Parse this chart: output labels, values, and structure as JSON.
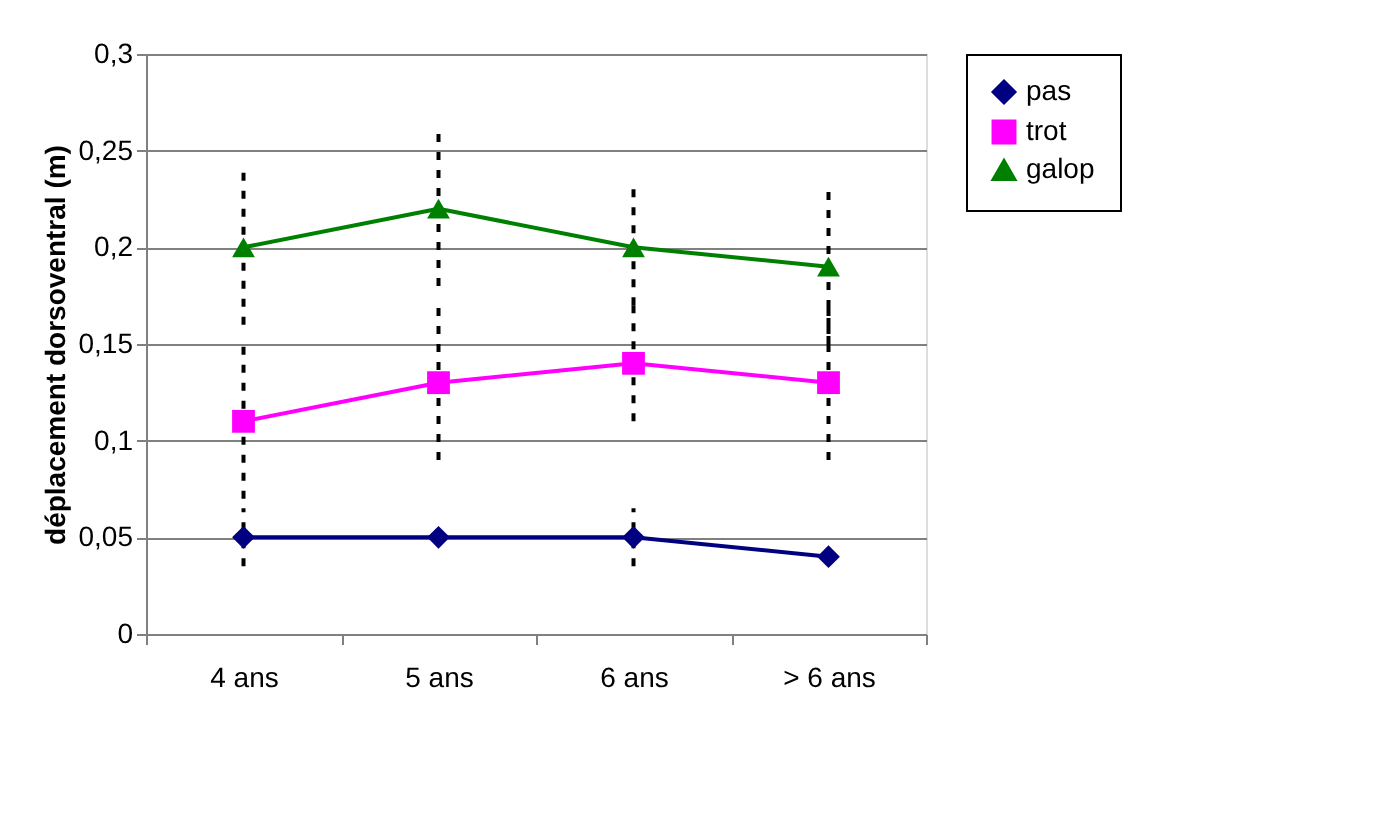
{
  "chart_data": {
    "type": "line",
    "ylabel": "déplacement dorsoventral (m)",
    "categories": [
      "4 ans",
      "5 ans",
      "6 ans",
      "> 6 ans"
    ],
    "series": [
      {
        "name": "pas",
        "color": "#000080",
        "marker": "diamond",
        "values": [
          0.05,
          0.05,
          0.05,
          0.04
        ],
        "errors": [
          0.015,
          null,
          0.015,
          null
        ]
      },
      {
        "name": "trot",
        "color": "#ff00ff",
        "marker": "square",
        "values": [
          0.11,
          0.13,
          0.14,
          0.13
        ],
        "errors": [
          0.04,
          0.04,
          0.03,
          0.04
        ]
      },
      {
        "name": "galop",
        "color": "#008000",
        "marker": "triangle",
        "values": [
          0.2,
          0.22,
          0.2,
          0.19
        ],
        "errors": [
          0.04,
          0.04,
          0.03,
          0.04
        ]
      }
    ],
    "ylim": [
      0,
      0.3
    ],
    "yticks": [
      {
        "value": 0,
        "label": "0"
      },
      {
        "value": 0.05,
        "label": "0,05"
      },
      {
        "value": 0.1,
        "label": "0,1"
      },
      {
        "value": 0.15,
        "label": "0,15"
      },
      {
        "value": 0.2,
        "label": "0,2"
      },
      {
        "value": 0.25,
        "label": "0,25"
      },
      {
        "value": 0.3,
        "label": "0,3"
      }
    ],
    "grid": "y",
    "legend": "right",
    "line_style": "solid"
  }
}
